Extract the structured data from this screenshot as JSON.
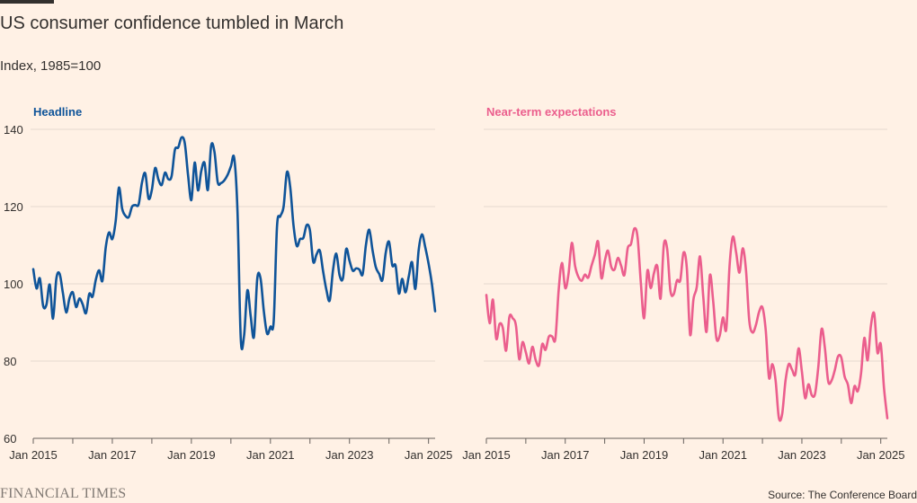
{
  "title": "US consumer confidence tumbled in March",
  "subtitle": "Index, 1985=100",
  "source": "Source: The Conference Board",
  "logo": "FINANCIAL TIMES",
  "colors": {
    "background": "#fff1e5",
    "headline": "#0f5499",
    "near_term": "#eb5e8d",
    "grid": "#e6d9ce",
    "text": "#33302e",
    "logo": "#807973"
  },
  "chart_data": [
    {
      "type": "line",
      "title": "Headline",
      "ylim": [
        60,
        140
      ],
      "yticks": [
        60,
        80,
        100,
        120,
        140
      ],
      "xlim": [
        "2015-01",
        "2025-03"
      ],
      "xticks": [
        "Jan 2015",
        "Jan 2017",
        "Jan 2019",
        "Jan 2021",
        "Jan 2023",
        "Jan 2025"
      ],
      "grid": true,
      "series": [
        {
          "name": "Headline",
          "color": "#0f5499",
          "x": [
            "2015-01",
            "2015-02",
            "2015-03",
            "2015-04",
            "2015-05",
            "2015-06",
            "2015-07",
            "2015-08",
            "2015-09",
            "2015-10",
            "2015-11",
            "2015-12",
            "2016-01",
            "2016-02",
            "2016-03",
            "2016-04",
            "2016-05",
            "2016-06",
            "2016-07",
            "2016-08",
            "2016-09",
            "2016-10",
            "2016-11",
            "2016-12",
            "2017-01",
            "2017-02",
            "2017-03",
            "2017-04",
            "2017-05",
            "2017-06",
            "2017-07",
            "2017-08",
            "2017-09",
            "2017-10",
            "2017-11",
            "2017-12",
            "2018-01",
            "2018-02",
            "2018-03",
            "2018-04",
            "2018-05",
            "2018-06",
            "2018-07",
            "2018-08",
            "2018-09",
            "2018-10",
            "2018-11",
            "2018-12",
            "2019-01",
            "2019-02",
            "2019-03",
            "2019-04",
            "2019-05",
            "2019-06",
            "2019-07",
            "2019-08",
            "2019-09",
            "2019-10",
            "2019-11",
            "2019-12",
            "2020-01",
            "2020-02",
            "2020-03",
            "2020-04",
            "2020-05",
            "2020-06",
            "2020-07",
            "2020-08",
            "2020-09",
            "2020-10",
            "2020-11",
            "2020-12",
            "2021-01",
            "2021-02",
            "2021-03",
            "2021-04",
            "2021-05",
            "2021-06",
            "2021-07",
            "2021-08",
            "2021-09",
            "2021-10",
            "2021-11",
            "2021-12",
            "2022-01",
            "2022-02",
            "2022-03",
            "2022-04",
            "2022-05",
            "2022-06",
            "2022-07",
            "2022-08",
            "2022-09",
            "2022-10",
            "2022-11",
            "2022-12",
            "2023-01",
            "2023-02",
            "2023-03",
            "2023-04",
            "2023-05",
            "2023-06",
            "2023-07",
            "2023-08",
            "2023-09",
            "2023-10",
            "2023-11",
            "2023-12",
            "2024-01",
            "2024-02",
            "2024-03",
            "2024-04",
            "2024-05",
            "2024-06",
            "2024-07",
            "2024-08",
            "2024-09",
            "2024-10",
            "2024-11",
            "2024-12",
            "2025-01",
            "2025-02",
            "2025-03"
          ],
          "values": [
            103.8,
            98.8,
            101.4,
            94.3,
            94.6,
            99.8,
            91.0,
            101.3,
            102.6,
            97.6,
            92.6,
            96.3,
            97.8,
            94.0,
            96.2,
            94.7,
            92.4,
            97.4,
            96.7,
            101.1,
            103.5,
            100.8,
            109.4,
            113.3,
            111.6,
            116.1,
            124.9,
            119.4,
            117.6,
            117.3,
            120.0,
            120.4,
            120.6,
            126.2,
            128.6,
            122.1,
            124.3,
            130.0,
            127.0,
            125.6,
            128.8,
            127.1,
            127.9,
            134.7,
            135.3,
            137.9,
            136.4,
            128.1,
            121.7,
            131.4,
            124.2,
            129.2,
            131.3,
            124.3,
            135.7,
            134.2,
            126.3,
            126.1,
            126.8,
            128.2,
            130.4,
            132.6,
            118.8,
            85.7,
            86.6,
            98.3,
            91.7,
            86.3,
            101.3,
            101.4,
            92.9,
            87.1,
            88.9,
            90.4,
            114.9,
            117.5,
            120.0,
            128.9,
            125.1,
            115.2,
            109.8,
            111.6,
            111.9,
            115.2,
            113.8,
            105.7,
            107.6,
            108.6,
            103.2,
            98.4,
            95.7,
            103.6,
            107.8,
            102.2,
            101.4,
            109.0,
            106.0,
            103.4,
            104.0,
            103.7,
            102.5,
            110.1,
            114.0,
            108.7,
            104.3,
            102.6,
            101.0,
            108.0,
            110.9,
            104.8,
            104.7,
            97.5,
            101.3,
            97.8,
            101.9,
            105.6,
            98.7,
            108.7,
            112.8,
            109.5,
            105.3,
            100.1,
            92.9
          ]
        }
      ]
    },
    {
      "type": "line",
      "title": "Near-term expectations",
      "ylim": [
        60,
        140
      ],
      "yticks": [
        60,
        80,
        100,
        120,
        140
      ],
      "xlim": [
        "2015-01",
        "2025-03"
      ],
      "xticks": [
        "Jan 2015",
        "Jan 2017",
        "Jan 2019",
        "Jan 2021",
        "Jan 2023",
        "Jan 2025"
      ],
      "grid": true,
      "series": [
        {
          "name": "Near-term expectations",
          "color": "#eb5e8d",
          "x": [
            "2015-01",
            "2015-02",
            "2015-03",
            "2015-04",
            "2015-05",
            "2015-06",
            "2015-07",
            "2015-08",
            "2015-09",
            "2015-10",
            "2015-11",
            "2015-12",
            "2016-01",
            "2016-02",
            "2016-03",
            "2016-04",
            "2016-05",
            "2016-06",
            "2016-07",
            "2016-08",
            "2016-09",
            "2016-10",
            "2016-11",
            "2016-12",
            "2017-01",
            "2017-02",
            "2017-03",
            "2017-04",
            "2017-05",
            "2017-06",
            "2017-07",
            "2017-08",
            "2017-09",
            "2017-10",
            "2017-11",
            "2017-12",
            "2018-01",
            "2018-02",
            "2018-03",
            "2018-04",
            "2018-05",
            "2018-06",
            "2018-07",
            "2018-08",
            "2018-09",
            "2018-10",
            "2018-11",
            "2018-12",
            "2019-01",
            "2019-02",
            "2019-03",
            "2019-04",
            "2019-05",
            "2019-06",
            "2019-07",
            "2019-08",
            "2019-09",
            "2019-10",
            "2019-11",
            "2019-12",
            "2020-01",
            "2020-02",
            "2020-03",
            "2020-04",
            "2020-05",
            "2020-06",
            "2020-07",
            "2020-08",
            "2020-09",
            "2020-10",
            "2020-11",
            "2020-12",
            "2021-01",
            "2021-02",
            "2021-03",
            "2021-04",
            "2021-05",
            "2021-06",
            "2021-07",
            "2021-08",
            "2021-09",
            "2021-10",
            "2021-11",
            "2021-12",
            "2022-01",
            "2022-02",
            "2022-03",
            "2022-04",
            "2022-05",
            "2022-06",
            "2022-07",
            "2022-08",
            "2022-09",
            "2022-10",
            "2022-11",
            "2022-12",
            "2023-01",
            "2023-02",
            "2023-03",
            "2023-04",
            "2023-05",
            "2023-06",
            "2023-07",
            "2023-08",
            "2023-09",
            "2023-10",
            "2023-11",
            "2023-12",
            "2024-01",
            "2024-02",
            "2024-03",
            "2024-04",
            "2024-05",
            "2024-06",
            "2024-07",
            "2024-08",
            "2024-09",
            "2024-10",
            "2024-11",
            "2024-12",
            "2025-01",
            "2025-02",
            "2025-03"
          ],
          "values": [
            97.1,
            89.8,
            95.9,
            85.8,
            89.6,
            88.6,
            82.7,
            91.4,
            91.1,
            89.2,
            80.5,
            84.9,
            82.3,
            79.4,
            83.7,
            80.3,
            78.9,
            84.4,
            82.9,
            86.3,
            86.4,
            85.8,
            98.4,
            105.4,
            98.9,
            102.6,
            110.6,
            104.6,
            101.8,
            100.8,
            102.4,
            101.6,
            104.7,
            107.5,
            110.9,
            101.5,
            105.8,
            108.6,
            104.4,
            103.7,
            106.7,
            104.7,
            102.3,
            109.2,
            110.3,
            114.3,
            112.1,
            100.3,
            91.1,
            103.4,
            98.9,
            102.8,
            104.6,
            96.2,
            110.1,
            109.1,
            98.2,
            97.3,
            100.9,
            100.9,
            108.1,
            104.0,
            86.8,
            95.9,
            99.1,
            107.1,
            96.6,
            87.6,
            102.2,
            95.6,
            85.9,
            86.6,
            91.3,
            88.3,
            104.7,
            112.2,
            108.1,
            102.9,
            109.2,
            103.5,
            90.4,
            87.4,
            89.3,
            92.8,
            93.9,
            88.0,
            75.7,
            79.2,
            75.0,
            65.3,
            66.3,
            74.8,
            79.2,
            77.8,
            76.5,
            83.3,
            77.3,
            70.4,
            74.0,
            71.2,
            71.5,
            78.5,
            88.3,
            83.4,
            74.8,
            74.9,
            77.6,
            81.2,
            80.9,
            76.0,
            73.9,
            69.1,
            73.5,
            72.2,
            76.8,
            86.0,
            80.2,
            89.1,
            92.3,
            82.2,
            84.4,
            72.9,
            65.2
          ]
        }
      ]
    }
  ]
}
